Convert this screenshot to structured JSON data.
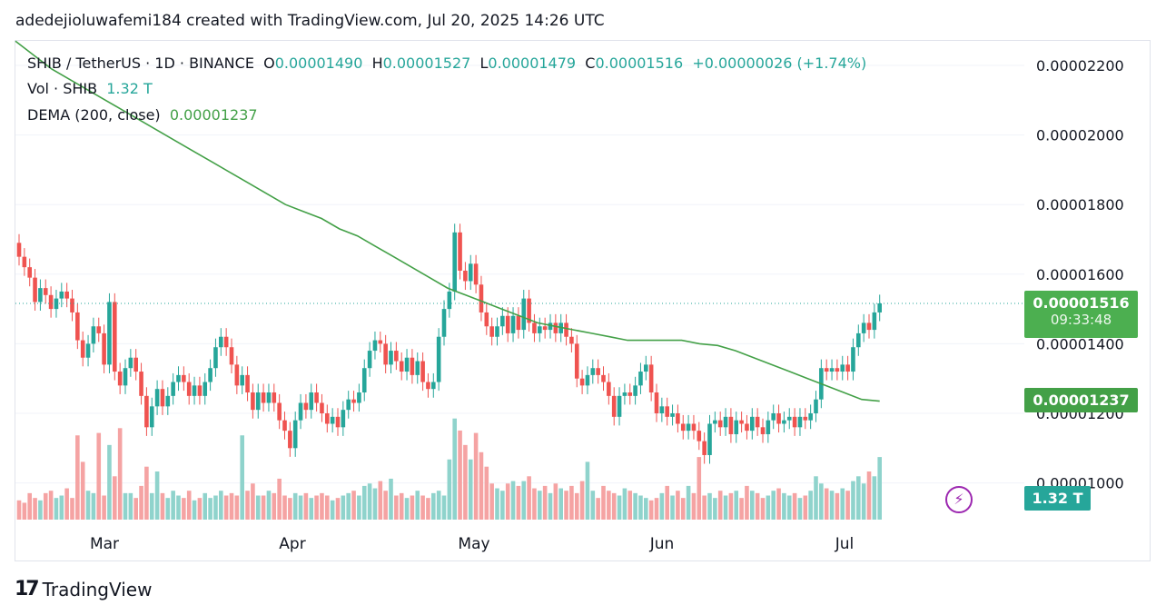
{
  "attribution": "adedejioluwafemi184 created with TradingView.com, Jul 20, 2025 14:26 UTC",
  "legend": {
    "symbol": "SHIB / TetherUS · 1D · BINANCE",
    "o_label": "O",
    "o_val": "0.00001490",
    "h_label": "H",
    "h_val": "0.00001527",
    "l_label": "L",
    "l_val": "0.00001479",
    "c_label": "C",
    "c_val": "0.00001516",
    "change": "+0.00000026 (+1.74%)",
    "vol_label": "Vol · SHIB",
    "vol_val": "1.32 T",
    "dema_label": "DEMA (200, close)",
    "dema_val": "0.00001237"
  },
  "price_tag": {
    "price": "0.00001516",
    "countdown": "09:33:48"
  },
  "dema_tag": "0.00001237",
  "vol_tag": "1.32 T",
  "footer": {
    "brand": "TradingView",
    "mark": "17"
  },
  "colors": {
    "up": "#26a69a",
    "down": "#ef5350",
    "up_vol": "#8fd3cc",
    "down_vol": "#f5a3a3",
    "dema": "#43a047",
    "tag_green": "#4caf50"
  },
  "chart_data": {
    "type": "candlestick",
    "title": "SHIB / TetherUS · 1D · BINANCE",
    "y_ticks": [
      "0.00002200",
      "0.00002000",
      "0.00001800",
      "0.00001600",
      "0.00001400",
      "0.00001200",
      "0.00001000"
    ],
    "y_range": [
      9.2e-06,
      2.28e-05
    ],
    "x_ticks": [
      "Mar",
      "Apr",
      "May",
      "Jun",
      "Jul"
    ],
    "candles": [
      {
        "o": 16.9,
        "c": 16.5
      },
      {
        "o": 16.5,
        "c": 16.2
      },
      {
        "o": 16.2,
        "c": 15.9
      },
      {
        "o": 15.9,
        "c": 15.2
      },
      {
        "o": 15.2,
        "c": 15.6
      },
      {
        "o": 15.6,
        "c": 15.4
      },
      {
        "o": 15.4,
        "c": 15.0
      },
      {
        "o": 15.0,
        "c": 15.3
      },
      {
        "o": 15.3,
        "c": 15.5
      },
      {
        "o": 15.5,
        "c": 15.3
      },
      {
        "o": 15.3,
        "c": 14.9
      },
      {
        "o": 14.9,
        "c": 14.1
      },
      {
        "o": 14.1,
        "c": 13.6
      },
      {
        "o": 13.6,
        "c": 14.0
      },
      {
        "o": 14.0,
        "c": 14.5
      },
      {
        "o": 14.5,
        "c": 14.3
      },
      {
        "o": 14.3,
        "c": 13.4
      },
      {
        "o": 13.4,
        "c": 15.2
      },
      {
        "o": 15.2,
        "c": 13.2
      },
      {
        "o": 13.2,
        "c": 12.8
      },
      {
        "o": 12.8,
        "c": 13.3
      },
      {
        "o": 13.3,
        "c": 13.6
      },
      {
        "o": 13.6,
        "c": 13.2
      },
      {
        "o": 13.2,
        "c": 12.5
      },
      {
        "o": 12.5,
        "c": 11.6
      },
      {
        "o": 11.6,
        "c": 12.2
      },
      {
        "o": 12.2,
        "c": 12.7
      },
      {
        "o": 12.7,
        "c": 12.2
      },
      {
        "o": 12.2,
        "c": 12.5
      },
      {
        "o": 12.5,
        "c": 12.9
      },
      {
        "o": 12.9,
        "c": 13.1
      },
      {
        "o": 13.1,
        "c": 12.9
      },
      {
        "o": 12.9,
        "c": 12.5
      },
      {
        "o": 12.5,
        "c": 12.8
      },
      {
        "o": 12.8,
        "c": 12.5
      },
      {
        "o": 12.5,
        "c": 12.9
      },
      {
        "o": 12.9,
        "c": 13.3
      },
      {
        "o": 13.3,
        "c": 13.9
      },
      {
        "o": 13.9,
        "c": 14.2
      },
      {
        "o": 14.2,
        "c": 13.9
      },
      {
        "o": 13.9,
        "c": 13.4
      },
      {
        "o": 13.4,
        "c": 12.8
      },
      {
        "o": 12.8,
        "c": 13.1
      },
      {
        "o": 13.1,
        "c": 12.6
      },
      {
        "o": 12.6,
        "c": 12.1
      },
      {
        "o": 12.1,
        "c": 12.6
      },
      {
        "o": 12.6,
        "c": 12.3
      },
      {
        "o": 12.3,
        "c": 12.6
      },
      {
        "o": 12.6,
        "c": 12.3
      },
      {
        "o": 12.3,
        "c": 11.8
      },
      {
        "o": 11.8,
        "c": 11.5
      },
      {
        "o": 11.5,
        "c": 11.0
      },
      {
        "o": 11.0,
        "c": 11.8
      },
      {
        "o": 11.8,
        "c": 12.3
      },
      {
        "o": 12.3,
        "c": 12.1
      },
      {
        "o": 12.1,
        "c": 12.6
      },
      {
        "o": 12.6,
        "c": 12.3
      },
      {
        "o": 12.3,
        "c": 12.0
      },
      {
        "o": 12.0,
        "c": 11.7
      },
      {
        "o": 11.7,
        "c": 11.9
      },
      {
        "o": 11.9,
        "c": 11.6
      },
      {
        "o": 11.6,
        "c": 12.1
      },
      {
        "o": 12.1,
        "c": 12.4
      },
      {
        "o": 12.4,
        "c": 12.3
      },
      {
        "o": 12.3,
        "c": 12.6
      },
      {
        "o": 12.6,
        "c": 13.3
      },
      {
        "o": 13.3,
        "c": 13.8
      },
      {
        "o": 13.8,
        "c": 14.1
      },
      {
        "o": 14.1,
        "c": 14.0
      },
      {
        "o": 14.0,
        "c": 13.4
      },
      {
        "o": 13.4,
        "c": 13.8
      },
      {
        "o": 13.8,
        "c": 13.5
      },
      {
        "o": 13.5,
        "c": 13.2
      },
      {
        "o": 13.2,
        "c": 13.6
      },
      {
        "o": 13.6,
        "c": 13.1
      },
      {
        "o": 13.1,
        "c": 13.5
      },
      {
        "o": 13.5,
        "c": 12.9
      },
      {
        "o": 12.9,
        "c": 12.7
      },
      {
        "o": 12.7,
        "c": 12.9
      },
      {
        "o": 12.9,
        "c": 14.2
      },
      {
        "o": 14.2,
        "c": 15.0
      },
      {
        "o": 15.0,
        "c": 15.5
      },
      {
        "o": 15.5,
        "c": 17.2
      },
      {
        "o": 17.2,
        "c": 16.1
      },
      {
        "o": 16.1,
        "c": 15.8
      },
      {
        "o": 15.8,
        "c": 16.3
      },
      {
        "o": 16.3,
        "c": 15.7
      },
      {
        "o": 15.7,
        "c": 14.9
      },
      {
        "o": 14.9,
        "c": 14.5
      },
      {
        "o": 14.5,
        "c": 14.2
      },
      {
        "o": 14.2,
        "c": 14.5
      },
      {
        "o": 14.5,
        "c": 14.8
      },
      {
        "o": 14.8,
        "c": 14.3
      },
      {
        "o": 14.3,
        "c": 14.8
      },
      {
        "o": 14.8,
        "c": 14.4
      },
      {
        "o": 14.4,
        "c": 15.3
      },
      {
        "o": 15.3,
        "c": 14.6
      },
      {
        "o": 14.6,
        "c": 14.3
      },
      {
        "o": 14.3,
        "c": 14.5
      },
      {
        "o": 14.5,
        "c": 14.4
      },
      {
        "o": 14.4,
        "c": 14.6
      },
      {
        "o": 14.6,
        "c": 14.3
      },
      {
        "o": 14.3,
        "c": 14.6
      },
      {
        "o": 14.6,
        "c": 14.2
      },
      {
        "o": 14.2,
        "c": 14.0
      },
      {
        "o": 14.0,
        "c": 13.0
      },
      {
        "o": 13.0,
        "c": 12.8
      },
      {
        "o": 12.8,
        "c": 13.1
      },
      {
        "o": 13.1,
        "c": 13.3
      },
      {
        "o": 13.3,
        "c": 13.1
      },
      {
        "o": 13.1,
        "c": 12.9
      },
      {
        "o": 12.9,
        "c": 12.5
      },
      {
        "o": 12.5,
        "c": 11.9
      },
      {
        "o": 11.9,
        "c": 12.5
      },
      {
        "o": 12.5,
        "c": 12.6
      },
      {
        "o": 12.6,
        "c": 12.5
      },
      {
        "o": 12.5,
        "c": 12.8
      },
      {
        "o": 12.8,
        "c": 13.2
      },
      {
        "o": 13.2,
        "c": 13.4
      },
      {
        "o": 13.4,
        "c": 12.6
      },
      {
        "o": 12.6,
        "c": 12.0
      },
      {
        "o": 12.0,
        "c": 12.2
      },
      {
        "o": 12.2,
        "c": 11.9
      },
      {
        "o": 11.9,
        "c": 12.0
      },
      {
        "o": 12.0,
        "c": 11.7
      },
      {
        "o": 11.7,
        "c": 11.5
      },
      {
        "o": 11.5,
        "c": 11.7
      },
      {
        "o": 11.7,
        "c": 11.5
      },
      {
        "o": 11.5,
        "c": 11.2
      },
      {
        "o": 11.2,
        "c": 10.8
      },
      {
        "o": 10.8,
        "c": 11.7
      },
      {
        "o": 11.7,
        "c": 11.8
      },
      {
        "o": 11.8,
        "c": 11.6
      },
      {
        "o": 11.6,
        "c": 11.9
      },
      {
        "o": 11.9,
        "c": 11.4
      },
      {
        "o": 11.4,
        "c": 11.8
      },
      {
        "o": 11.8,
        "c": 11.7
      },
      {
        "o": 11.7,
        "c": 11.5
      },
      {
        "o": 11.5,
        "c": 11.9
      },
      {
        "o": 11.9,
        "c": 11.6
      },
      {
        "o": 11.6,
        "c": 11.4
      },
      {
        "o": 11.4,
        "c": 11.8
      },
      {
        "o": 11.8,
        "c": 12.0
      },
      {
        "o": 12.0,
        "c": 11.7
      },
      {
        "o": 11.7,
        "c": 11.8
      },
      {
        "o": 11.8,
        "c": 11.9
      },
      {
        "o": 11.9,
        "c": 11.6
      },
      {
        "o": 11.6,
        "c": 11.9
      },
      {
        "o": 11.9,
        "c": 11.8
      },
      {
        "o": 11.8,
        "c": 12.0
      },
      {
        "o": 12.0,
        "c": 12.4
      },
      {
        "o": 12.4,
        "c": 13.3
      },
      {
        "o": 13.3,
        "c": 13.2
      },
      {
        "o": 13.2,
        "c": 13.3
      },
      {
        "o": 13.3,
        "c": 13.2
      },
      {
        "o": 13.2,
        "c": 13.4
      },
      {
        "o": 13.4,
        "c": 13.2
      },
      {
        "o": 13.2,
        "c": 13.9
      },
      {
        "o": 13.9,
        "c": 14.3
      },
      {
        "o": 14.3,
        "c": 14.6
      },
      {
        "o": 14.6,
        "c": 14.4
      },
      {
        "o": 14.4,
        "c": 14.9
      },
      {
        "o": 14.9,
        "c": 15.16
      }
    ],
    "volume": [
      8,
      7,
      11,
      9,
      8,
      11,
      12,
      9,
      10,
      13,
      9,
      35,
      24,
      12,
      11,
      36,
      10,
      31,
      18,
      38,
      11,
      11,
      9,
      14,
      22,
      11,
      20,
      11,
      9,
      12,
      10,
      9,
      12,
      8,
      9,
      11,
      9,
      10,
      12,
      10,
      11,
      10,
      35,
      12,
      15,
      10,
      10,
      12,
      11,
      17,
      10,
      9,
      11,
      10,
      11,
      9,
      10,
      11,
      10,
      8,
      9,
      10,
      11,
      12,
      10,
      14,
      15,
      13,
      16,
      12,
      17,
      10,
      11,
      9,
      10,
      12,
      10,
      9,
      11,
      12,
      10,
      25,
      42,
      37,
      31,
      25,
      36,
      28,
      22,
      15,
      13,
      12,
      15,
      16,
      14,
      16,
      18,
      13,
      12,
      14,
      11,
      15,
      13,
      12,
      14,
      11,
      16,
      24,
      12,
      9,
      14,
      12,
      11,
      10,
      13,
      12,
      11,
      10,
      9,
      8,
      9,
      11,
      14,
      10,
      12,
      9,
      14,
      11,
      26,
      10,
      11,
      9,
      12,
      10,
      11,
      12,
      9,
      14,
      12,
      11,
      9,
      10,
      12,
      13,
      11,
      10,
      11,
      9,
      10,
      12,
      18,
      15,
      13,
      12,
      11,
      13,
      12,
      16,
      18,
      15,
      20,
      18,
      26,
      14,
      9
    ],
    "dema": [
      22.7,
      22.3,
      21.9,
      21.6,
      21.3,
      21.0,
      20.7,
      20.4,
      20.1,
      19.8,
      19.5,
      19.2,
      18.9,
      18.6,
      18.3,
      18.0,
      17.8,
      17.6,
      17.3,
      17.1,
      16.8,
      16.5,
      16.2,
      15.9,
      15.6,
      15.4,
      15.2,
      15.0,
      14.8,
      14.6,
      14.5,
      14.4,
      14.3,
      14.2,
      14.1,
      14.1,
      14.1,
      14.1,
      14.0,
      13.95,
      13.8,
      13.6,
      13.4,
      13.2,
      13.0,
      12.8,
      12.6,
      12.4,
      12.35
    ]
  }
}
